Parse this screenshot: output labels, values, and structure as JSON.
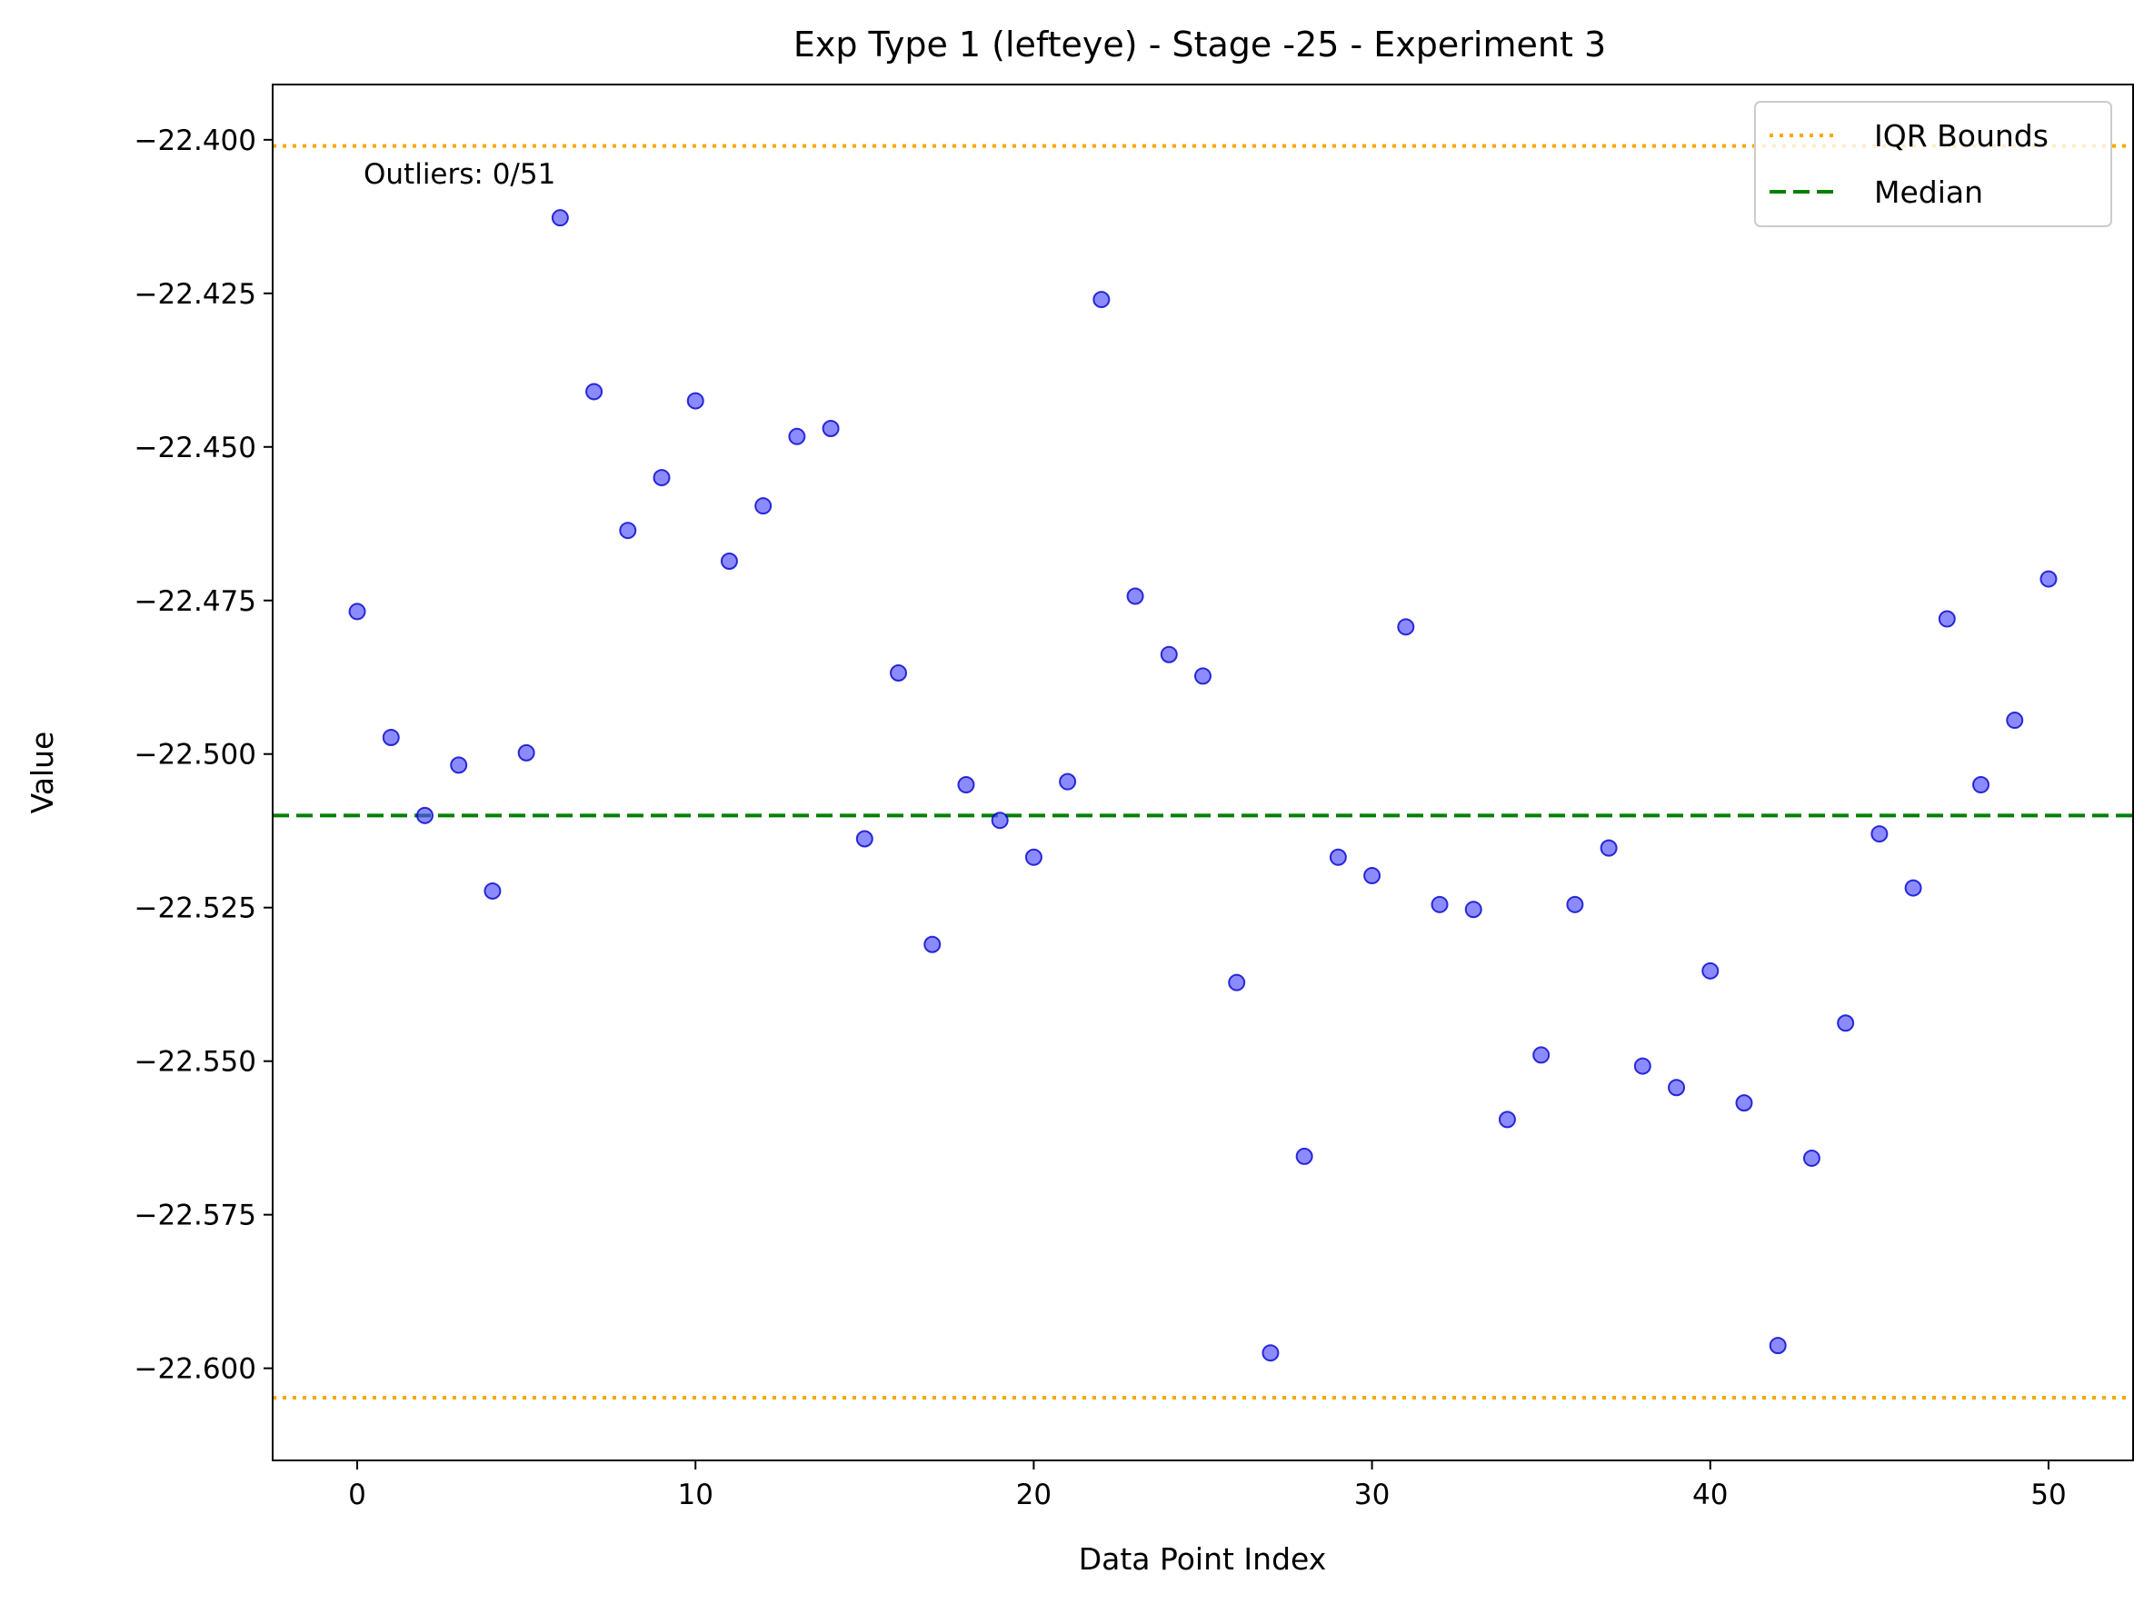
{
  "chart_data": {
    "type": "scatter",
    "title": "Exp Type 1 (lefteye) - Stage -25 - Experiment 3",
    "xlabel": "Data Point Index",
    "ylabel": "Value",
    "xlim": [
      -2.5,
      52.5
    ],
    "ylim": [
      -22.615,
      -22.391
    ],
    "x_ticks": [
      0,
      10,
      20,
      30,
      40,
      50
    ],
    "y_ticks": [
      -22.4,
      -22.425,
      -22.45,
      -22.475,
      -22.5,
      -22.525,
      -22.55,
      -22.575,
      -22.6
    ],
    "y_tick_labels": [
      "−22.400",
      "−22.425",
      "−22.450",
      "−22.475",
      "−22.500",
      "−22.525",
      "−22.550",
      "−22.575",
      "−22.600"
    ],
    "grid": false,
    "legend_position": "top-right",
    "annotation": "Outliers: 0/51",
    "points": {
      "color": "#4d4dff",
      "edge_color": "#0000cc",
      "x": [
        0,
        1,
        2,
        3,
        4,
        5,
        6,
        7,
        8,
        9,
        10,
        11,
        12,
        13,
        14,
        15,
        16,
        17,
        18,
        19,
        20,
        21,
        22,
        23,
        24,
        25,
        26,
        27,
        28,
        29,
        30,
        31,
        32,
        33,
        34,
        35,
        36,
        37,
        38,
        39,
        40,
        41,
        42,
        43,
        44,
        45,
        46,
        47,
        48,
        49,
        50
      ],
      "y": [
        -22.4768,
        -22.4973,
        -22.51,
        -22.5018,
        -22.5223,
        -22.4998,
        -22.4127,
        -22.441,
        -22.4636,
        -22.455,
        -22.4425,
        -22.4686,
        -22.4596,
        -22.4483,
        -22.447,
        -22.5138,
        -22.4868,
        -22.531,
        -22.505,
        -22.5108,
        -22.5168,
        -22.5045,
        -22.426,
        -22.4743,
        -22.4838,
        -22.4873,
        -22.5372,
        -22.5975,
        -22.5655,
        -22.5168,
        -22.5198,
        -22.4793,
        -22.5245,
        -22.5253,
        -22.5595,
        -22.549,
        -22.5245,
        -22.5153,
        -22.5508,
        -22.5543,
        -22.5353,
        -22.5568,
        -22.5963,
        -22.5658,
        -22.5438,
        -22.513,
        -22.5218,
        -22.478,
        -22.505,
        -22.4945,
        -22.4715
      ]
    },
    "reference_lines": [
      {
        "name": "IQR Bounds",
        "style": "dotted",
        "color": "#ffa500",
        "y": [
          -22.401,
          -22.6048
        ]
      },
      {
        "name": "Median",
        "style": "dashed",
        "color": "#008000",
        "y": [
          -22.51
        ]
      }
    ]
  }
}
